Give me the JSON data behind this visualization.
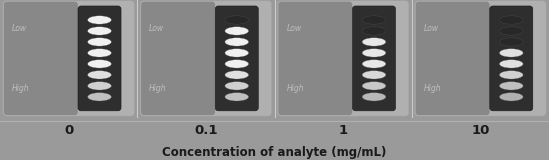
{
  "concentrations": [
    "0",
    "0.1",
    "1",
    "10"
  ],
  "n_panels": 4,
  "overall_bg": "#9a9a9a",
  "panel_bg": "#b2b2b2",
  "card_bg_left": "#8c8c8c",
  "strip_color": "#3c3c3c",
  "xlabel": "Concentration of analyte (mg/mL)",
  "xlabel_fontsize": 8.5,
  "tick_fontsize": 9.5,
  "tick_fontweight": "bold",
  "label_color": "#1a1a1a",
  "low_label": "Low",
  "high_label": "High",
  "watermark_color": "#c8c8c8",
  "line_color": "#b0b0b0",
  "n_dots": 8,
  "dark_counts": [
    0,
    1,
    2,
    3
  ],
  "dot_colors_by_position": [
    [
      "#f0f0f0",
      "#f0f0f0",
      "#f0f0f0",
      "#f0f0f0",
      "#f0f0f0",
      "#e0e0e0",
      "#d0d0d0",
      "#c0c0c0"
    ],
    [
      "#282828",
      "#f0f0f0",
      "#f0f0f0",
      "#f0f0f0",
      "#f0f0f0",
      "#e0e0e0",
      "#d0d0d0",
      "#c0c0c0"
    ],
    [
      "#282828",
      "#282828",
      "#e8e8e8",
      "#e8e8e8",
      "#e8e8e8",
      "#d8d8d8",
      "#c8c8c8",
      "#b8b8b8"
    ],
    [
      "#282828",
      "#282828",
      "#282828",
      "#e0e0e0",
      "#e0e0e0",
      "#d0d0d0",
      "#c0c0c0",
      "#b0b0b0"
    ]
  ]
}
